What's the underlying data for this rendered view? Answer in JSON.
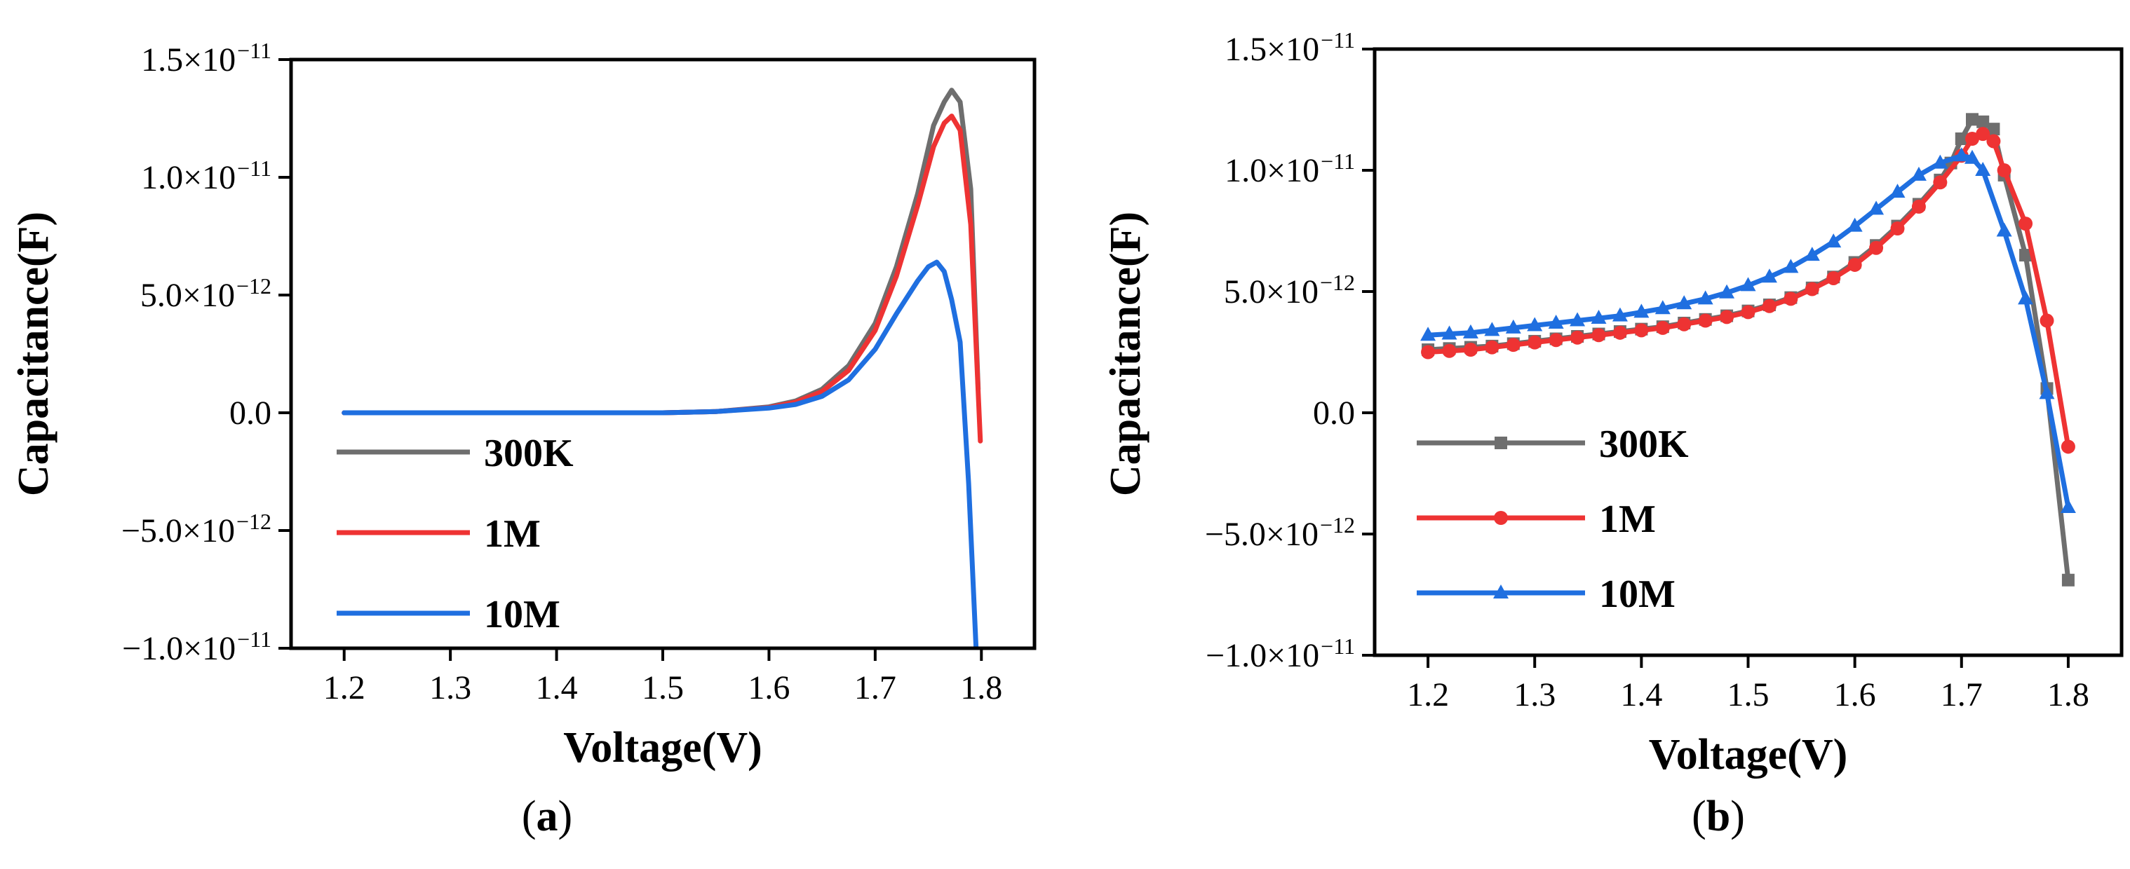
{
  "chart_data": [
    {
      "panel_label": "a",
      "type": "line",
      "xlabel": "Voltage(V)",
      "ylabel": "Capacitance(F)",
      "xlim": [
        1.15,
        1.85
      ],
      "ylim": [
        -1e-11,
        1.5e-11
      ],
      "x_ticks": [
        {
          "value": 1.2,
          "label": "1.2"
        },
        {
          "value": 1.3,
          "label": "1.3"
        },
        {
          "value": 1.4,
          "label": "1.4"
        },
        {
          "value": 1.5,
          "label": "1.5"
        },
        {
          "value": 1.6,
          "label": "1.6"
        },
        {
          "value": 1.7,
          "label": "1.7"
        },
        {
          "value": 1.8,
          "label": "1.8"
        }
      ],
      "y_ticks": [
        {
          "value": 1.5e-11,
          "mantissa": "1.5×10",
          "exponent": "−11"
        },
        {
          "value": 1e-11,
          "mantissa": "1.0×10",
          "exponent": "−11"
        },
        {
          "value": 5e-12,
          "mantissa": "5.0×10",
          "exponent": "−12"
        },
        {
          "value": 0,
          "mantissa": "0.0",
          "exponent": ""
        },
        {
          "value": -5e-12,
          "mantissa": "−5.0×10",
          "exponent": "−12"
        },
        {
          "value": -1e-11,
          "mantissa": "−1.0×10",
          "exponent": "−11"
        }
      ],
      "legend_position": "bottom-left",
      "series": [
        {
          "name": "300K",
          "color": "#6e6e6e",
          "marker": "none",
          "x": [
            1.2,
            1.3,
            1.4,
            1.5,
            1.55,
            1.6,
            1.625,
            1.65,
            1.675,
            1.7,
            1.72,
            1.74,
            1.755,
            1.765,
            1.772,
            1.78,
            1.79,
            1.797
          ],
          "y": [
            0,
            0,
            0,
            0,
            5e-14,
            2.5e-13,
            5e-13,
            1e-12,
            2e-12,
            3.8e-12,
            6.2e-12,
            9.3e-12,
            1.22e-11,
            1.32e-11,
            1.37e-11,
            1.32e-11,
            9.5e-12,
            1e-12
          ]
        },
        {
          "name": "1M",
          "color": "#ee3333",
          "marker": "none",
          "x": [
            1.2,
            1.3,
            1.4,
            1.5,
            1.55,
            1.6,
            1.625,
            1.65,
            1.675,
            1.7,
            1.72,
            1.74,
            1.755,
            1.765,
            1.772,
            1.78,
            1.79,
            1.799
          ],
          "y": [
            0,
            0,
            0,
            0,
            5e-14,
            2.2e-13,
            4.5e-13,
            9e-13,
            1.8e-12,
            3.5e-12,
            5.8e-12,
            8.8e-12,
            1.13e-11,
            1.23e-11,
            1.26e-11,
            1.2e-11,
            8e-12,
            -1.2e-12
          ]
        },
        {
          "name": "10M",
          "color": "#1f6fe0",
          "marker": "none",
          "x": [
            1.2,
            1.3,
            1.4,
            1.5,
            1.55,
            1.6,
            1.625,
            1.65,
            1.675,
            1.7,
            1.72,
            1.74,
            1.75,
            1.758,
            1.765,
            1.772,
            1.78,
            1.788,
            1.795
          ],
          "y": [
            0,
            0,
            0,
            0,
            5e-14,
            2e-13,
            3.5e-13,
            7e-13,
            1.4e-12,
            2.7e-12,
            4.2e-12,
            5.6e-12,
            6.2e-12,
            6.4e-12,
            6e-12,
            4.8e-12,
            3e-12,
            -3e-12,
            -1e-11
          ]
        }
      ]
    },
    {
      "panel_label": "b",
      "type": "line",
      "xlabel": "Voltage(V)",
      "ylabel": "Capacitance(F)",
      "xlim": [
        1.15,
        1.85
      ],
      "ylim": [
        -1e-11,
        1.5e-11
      ],
      "x_ticks": [
        {
          "value": 1.2,
          "label": "1.2"
        },
        {
          "value": 1.3,
          "label": "1.3"
        },
        {
          "value": 1.4,
          "label": "1.4"
        },
        {
          "value": 1.5,
          "label": "1.5"
        },
        {
          "value": 1.6,
          "label": "1.6"
        },
        {
          "value": 1.7,
          "label": "1.7"
        },
        {
          "value": 1.8,
          "label": "1.8"
        }
      ],
      "y_ticks": [
        {
          "value": 1.5e-11,
          "mantissa": "1.5×10",
          "exponent": "−11"
        },
        {
          "value": 1e-11,
          "mantissa": "1.0×10",
          "exponent": "−11"
        },
        {
          "value": 5e-12,
          "mantissa": "5.0×10",
          "exponent": "−12"
        },
        {
          "value": 0,
          "mantissa": "0.0",
          "exponent": ""
        },
        {
          "value": -5e-12,
          "mantissa": "−5.0×10",
          "exponent": "−12"
        },
        {
          "value": -1e-11,
          "mantissa": "−1.0×10",
          "exponent": "−11"
        }
      ],
      "legend_position": "bottom-left",
      "series": [
        {
          "name": "300K",
          "color": "#6e6e6e",
          "marker": "square",
          "x": [
            1.2,
            1.22,
            1.24,
            1.26,
            1.28,
            1.3,
            1.32,
            1.34,
            1.36,
            1.38,
            1.4,
            1.42,
            1.44,
            1.46,
            1.48,
            1.5,
            1.52,
            1.54,
            1.56,
            1.58,
            1.6,
            1.62,
            1.64,
            1.66,
            1.68,
            1.69,
            1.7,
            1.71,
            1.72,
            1.73,
            1.74,
            1.76,
            1.78,
            1.8
          ],
          "y": [
            2.6e-12,
            2.65e-12,
            2.7e-12,
            2.75e-12,
            2.85e-12,
            2.95e-12,
            3.05e-12,
            3.15e-12,
            3.25e-12,
            3.35e-12,
            3.45e-12,
            3.55e-12,
            3.7e-12,
            3.85e-12,
            4e-12,
            4.2e-12,
            4.45e-12,
            4.75e-12,
            5.15e-12,
            5.6e-12,
            6.2e-12,
            6.9e-12,
            7.7e-12,
            8.6e-12,
            9.6e-12,
            1.03e-11,
            1.13e-11,
            1.21e-11,
            1.2e-11,
            1.17e-11,
            9.8e-12,
            6.5e-12,
            1e-12,
            -6.9e-12
          ]
        },
        {
          "name": "1M",
          "color": "#ee3333",
          "marker": "circle",
          "x": [
            1.2,
            1.22,
            1.24,
            1.26,
            1.28,
            1.3,
            1.32,
            1.34,
            1.36,
            1.38,
            1.4,
            1.42,
            1.44,
            1.46,
            1.48,
            1.5,
            1.52,
            1.54,
            1.56,
            1.58,
            1.6,
            1.62,
            1.64,
            1.66,
            1.68,
            1.7,
            1.71,
            1.72,
            1.73,
            1.74,
            1.76,
            1.78,
            1.8
          ],
          "y": [
            2.5e-12,
            2.55e-12,
            2.6e-12,
            2.7e-12,
            2.8e-12,
            2.9e-12,
            3e-12,
            3.1e-12,
            3.2e-12,
            3.3e-12,
            3.4e-12,
            3.5e-12,
            3.65e-12,
            3.8e-12,
            3.95e-12,
            4.15e-12,
            4.4e-12,
            4.7e-12,
            5.1e-12,
            5.55e-12,
            6.1e-12,
            6.8e-12,
            7.6e-12,
            8.5e-12,
            9.5e-12,
            1.06e-11,
            1.13e-11,
            1.15e-11,
            1.12e-11,
            1e-11,
            7.8e-12,
            3.8e-12,
            -1.4e-12
          ]
        },
        {
          "name": "10M",
          "color": "#1f6fe0",
          "marker": "triangle",
          "x": [
            1.2,
            1.22,
            1.24,
            1.26,
            1.28,
            1.3,
            1.32,
            1.34,
            1.36,
            1.38,
            1.4,
            1.42,
            1.44,
            1.46,
            1.48,
            1.5,
            1.52,
            1.54,
            1.56,
            1.58,
            1.6,
            1.62,
            1.64,
            1.66,
            1.68,
            1.7,
            1.71,
            1.72,
            1.74,
            1.76,
            1.78,
            1.8
          ],
          "y": [
            3.2e-12,
            3.25e-12,
            3.3e-12,
            3.4e-12,
            3.5e-12,
            3.6e-12,
            3.7e-12,
            3.8e-12,
            3.9e-12,
            4e-12,
            4.15e-12,
            4.3e-12,
            4.5e-12,
            4.7e-12,
            4.95e-12,
            5.25e-12,
            5.6e-12,
            6e-12,
            6.5e-12,
            7.05e-12,
            7.7e-12,
            8.4e-12,
            9.1e-12,
            9.8e-12,
            1.03e-11,
            1.06e-11,
            1.05e-11,
            1e-11,
            7.5e-12,
            4.7e-12,
            8e-13,
            -3.9e-12
          ]
        }
      ]
    }
  ]
}
